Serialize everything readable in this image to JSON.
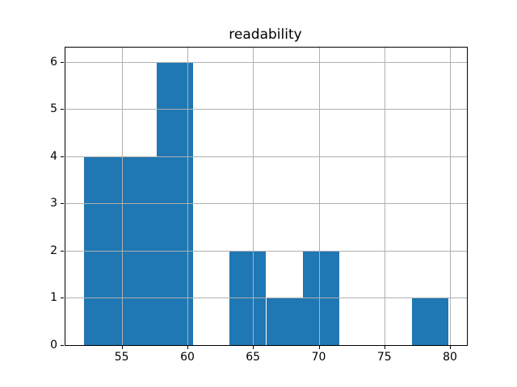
{
  "chart_data": {
    "type": "bar",
    "subtype": "histogram",
    "title": "readability",
    "bin_edges": [
      52.1,
      54.88,
      57.66,
      60.44,
      63.22,
      66.0,
      68.78,
      71.56,
      74.34,
      77.12,
      79.9
    ],
    "counts": [
      4,
      4,
      6,
      0,
      2,
      1,
      2,
      0,
      0,
      1
    ],
    "xticks": [
      "55",
      "60",
      "65",
      "70",
      "75",
      "80"
    ],
    "xtick_values": [
      55,
      60,
      65,
      70,
      75,
      80
    ],
    "yticks": [
      "0",
      "1",
      "2",
      "3",
      "4",
      "5",
      "6"
    ],
    "ytick_values": [
      0,
      1,
      2,
      3,
      4,
      5,
      6
    ],
    "xlim": [
      50.71,
      81.29
    ],
    "ylim": [
      0,
      6.3
    ],
    "xlabel": "",
    "ylabel": "",
    "grid": true,
    "grid_over_bars": true,
    "bar_color": "#1f77b4",
    "grid_color": "#b0b0b0",
    "spine_color": "#000000",
    "background_color": "#ffffff"
  }
}
